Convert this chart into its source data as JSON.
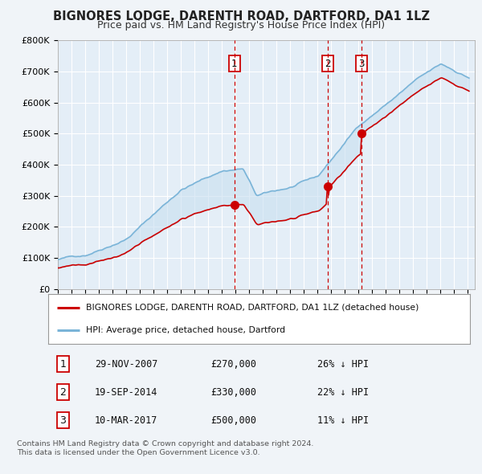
{
  "title": "BIGNORES LODGE, DARENTH ROAD, DARTFORD, DA1 1LZ",
  "subtitle": "Price paid vs. HM Land Registry's House Price Index (HPI)",
  "legend_line1": "BIGNORES LODGE, DARENTH ROAD, DARTFORD, DA1 1LZ (detached house)",
  "legend_line2": "HPI: Average price, detached house, Dartford",
  "transactions": [
    {
      "num": 1,
      "date": "29-NOV-2007",
      "price": 270000,
      "pct": "26%",
      "x_year": 2007.91
    },
    {
      "num": 2,
      "date": "19-SEP-2014",
      "price": 330000,
      "pct": "22%",
      "x_year": 2014.72
    },
    {
      "num": 3,
      "date": "10-MAR-2017",
      "price": 500000,
      "pct": "11%",
      "x_year": 2017.19
    }
  ],
  "footnote1": "Contains HM Land Registry data © Crown copyright and database right 2024.",
  "footnote2": "This data is licensed under the Open Government Licence v3.0.",
  "ylim": [
    0,
    800000
  ],
  "xlim_start": 1995.0,
  "xlim_end": 2025.5,
  "hpi_color": "#7ab4d8",
  "hpi_fill": "#c8dff0",
  "price_color": "#cc0000",
  "bg_color": "#f0f4f8",
  "plot_bg": "#e4eef7",
  "grid_color": "#ffffff",
  "vline_color": "#cc0000",
  "marker_color": "#cc0000",
  "title_fontsize": 10.5,
  "subtitle_fontsize": 9.5
}
